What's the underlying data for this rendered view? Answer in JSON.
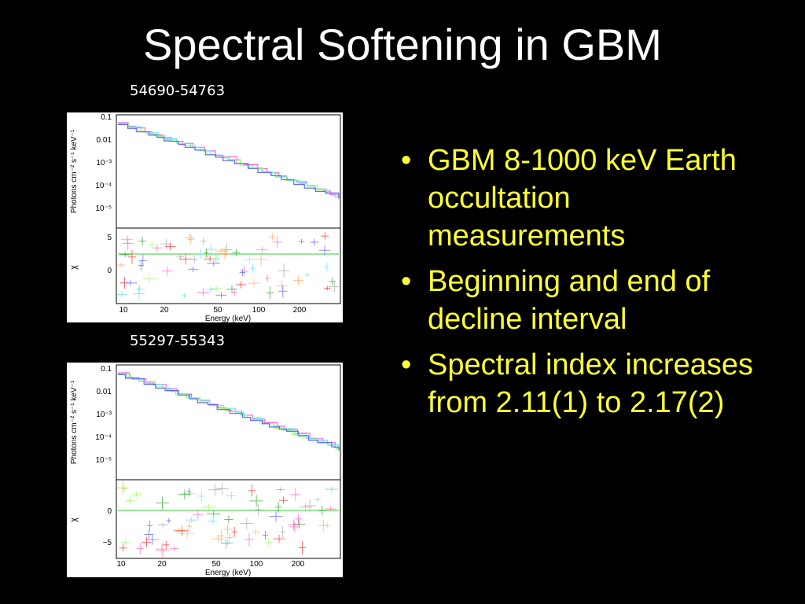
{
  "slide": {
    "title": "Spectral Softening in GBM",
    "bullets": [
      "GBM 8-1000 keV Earth occultation measurements",
      "Beginning and end of decline interval",
      "Spectral index increases from 2.11(1) to 2.17(2)"
    ]
  },
  "figures": [
    {
      "caption": "54690-54763",
      "ylabel_top": "Photons cm⁻² s⁻¹ keV⁻¹",
      "ylabel_bottom": "χ",
      "xlabel": "Energy (keV)",
      "y_ticks_top": [
        "0.1",
        "0.01",
        "10⁻³",
        "10⁻⁴",
        "10⁻⁵"
      ],
      "y_ticks_bottom": [
        "5",
        "0"
      ],
      "x_ticks": [
        "10",
        "20",
        "50",
        "100",
        "200"
      ]
    },
    {
      "caption": "55297-55343",
      "ylabel_top": "Photons cm⁻² s⁻¹ keV⁻¹",
      "ylabel_bottom": "χ",
      "xlabel": "Energy (keV)",
      "y_ticks_top": [
        "0.1",
        "0.01",
        "10⁻³",
        "10⁻⁴",
        "10⁻⁵"
      ],
      "y_ticks_bottom": [
        "0",
        "−5"
      ],
      "x_ticks": [
        "10",
        "20",
        "50",
        "100",
        "200"
      ]
    }
  ],
  "colors": {
    "background": "#000000",
    "title": "#ffffff",
    "bullet_text": "#ffff33",
    "series": [
      "#ff66cc",
      "#66ddff",
      "#99ff66",
      "#6666ff",
      "#ffaa66",
      "#33aa33",
      "#ff3333",
      "#aaaaaa"
    ]
  }
}
